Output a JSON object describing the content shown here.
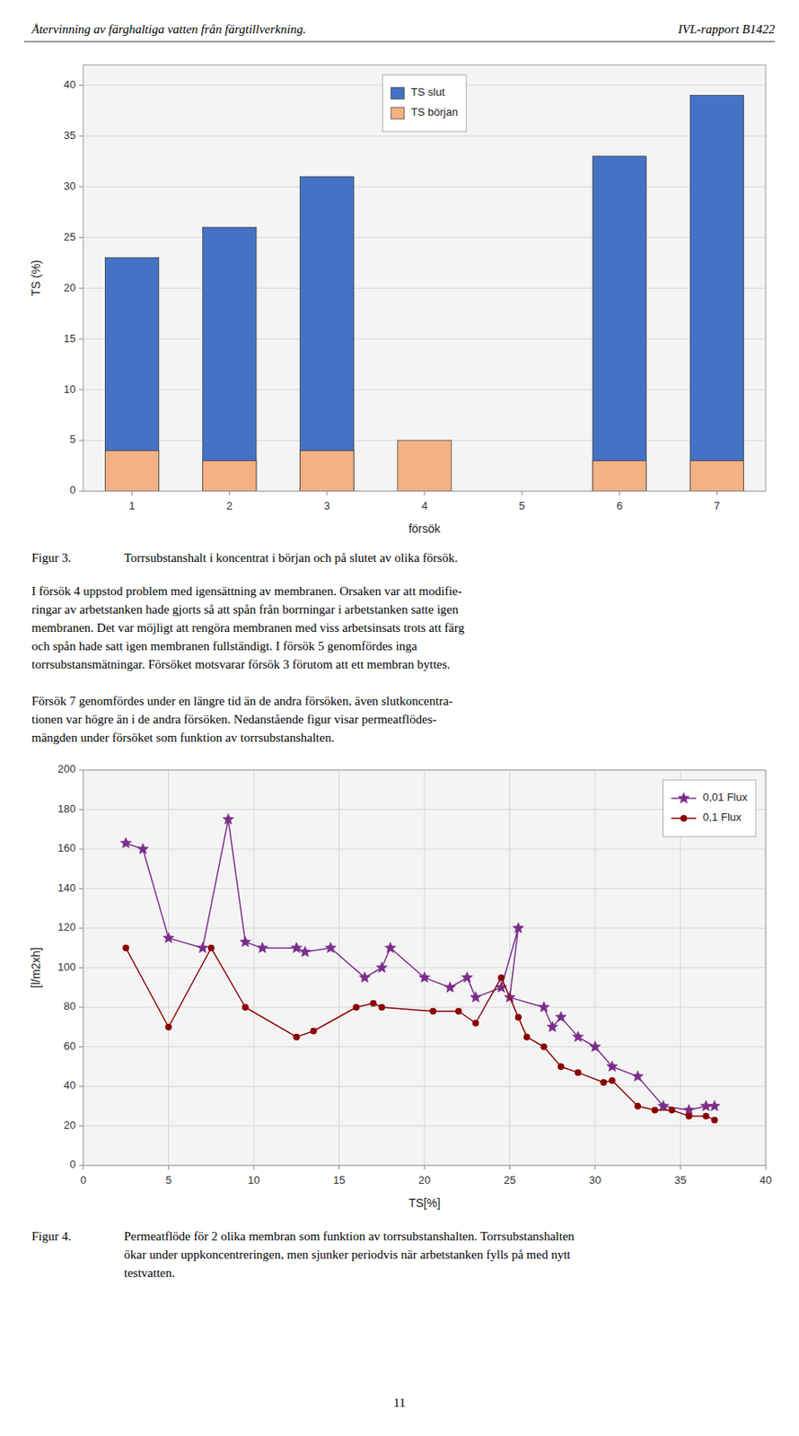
{
  "page": {
    "header_left": "Återvinning av färghaltiga vatten från färgtillverkning.",
    "header_right": "IVL-rapport B1422",
    "paragraphs": [
      [
        "I försök 4 uppstod problem med igensättning av membranen. Orsaken var att modifie-",
        "ringar av arbetstanken hade gjorts så att spån från borrningar i arbetstanken satte igen",
        "membranen. Det var möjligt att rengöra membranen med viss arbetsinsats trots att färg",
        "och spån hade satt igen membranen fullständigt. I försök 5 genomfördes inga",
        "torrsubstansmätningar. Försöket motsvarar försök 3 förutom att ett membran byttes."
      ],
      [
        "Försök 7 genomfördes under en längre tid än de andra försöken, även slutkoncentra-",
        "tionen var högre än i de andra försöken. Nedanstående figur visar permeatflödes-",
        "mängden under försöket som funktion av torrsubstanshalten."
      ]
    ],
    "page_number": "11"
  },
  "chart_data": [
    {
      "type": "bar",
      "categories": [
        1,
        2,
        3,
        4,
        5,
        6,
        7
      ],
      "xlabel": "försök",
      "ylabel": "TS (%)",
      "ylim": [
        0,
        42
      ],
      "yticks": [
        0,
        5,
        10,
        15,
        20,
        25,
        30,
        35,
        40
      ],
      "series": [
        {
          "name": "TS slut",
          "color": "#4472C4",
          "values": [
            23,
            26,
            31,
            0,
            0,
            33,
            39
          ]
        },
        {
          "name": "TS början",
          "color": "#F4B183",
          "values": [
            4,
            3,
            4,
            5,
            0,
            3,
            3
          ]
        }
      ],
      "stacked": false,
      "grid": "y",
      "legend": "top",
      "caption_label": "Figur 3.",
      "caption": [
        "Torrsubstanshalt i koncentrat i början och på slutet av olika försök."
      ]
    },
    {
      "type": "line",
      "xlabel": "TS[%]",
      "ylabel": "[l/m2xh]",
      "xlim": [
        0,
        40
      ],
      "ylim": [
        0,
        200
      ],
      "xticks": [
        0,
        5,
        10,
        15,
        20,
        25,
        30,
        35,
        40
      ],
      "yticks": [
        0,
        20,
        40,
        60,
        80,
        100,
        120,
        140,
        160,
        180,
        200
      ],
      "series": [
        {
          "name": "0,01 Flux",
          "color": "#7B2D8B",
          "marker": "star",
          "x": [
            2.5,
            3.5,
            5.0,
            7.0,
            8.5,
            9.5,
            10.5,
            12.5,
            13.0,
            14.5,
            16.5,
            17.5,
            18.0,
            20.0,
            21.5,
            22.5,
            23.0,
            24.5,
            25.5,
            25.0,
            27.0,
            27.5,
            28.0,
            29.0,
            30.0,
            31.0,
            32.5,
            34.0,
            35.5,
            36.5,
            37.0
          ],
          "values": [
            163,
            160,
            115,
            110,
            175,
            113,
            110,
            110,
            108,
            110,
            95,
            100,
            110,
            95,
            90,
            95,
            85,
            90,
            120,
            85,
            80,
            70,
            75,
            65,
            60,
            50,
            45,
            30,
            28,
            30,
            30
          ]
        },
        {
          "name": "0,1 Flux",
          "color": "#8B0000",
          "marker": "circle",
          "x": [
            2.5,
            5.0,
            7.5,
            9.5,
            12.5,
            13.5,
            16.0,
            17.0,
            17.5,
            20.5,
            22.0,
            23.0,
            24.5,
            25.5,
            26.0,
            27.0,
            28.0,
            29.0,
            30.5,
            31.0,
            32.5,
            33.5,
            34.5,
            35.5,
            36.5,
            37.0
          ],
          "values": [
            110,
            70,
            110,
            80,
            65,
            68,
            80,
            82,
            80,
            78,
            78,
            72,
            95,
            75,
            65,
            60,
            50,
            47,
            42,
            43,
            30,
            28,
            28,
            25,
            25,
            23
          ]
        }
      ],
      "grid": true,
      "legend": "top-right",
      "caption_label": "Figur 4.",
      "caption": [
        "Permeatflöde för 2 olika membran som funktion av torrsubstanshalten. Torrsubstanshalten",
        "ökar under uppkoncentreringen, men sjunker periodvis när arbetstanken fylls på med nytt",
        "testvatten."
      ]
    }
  ]
}
